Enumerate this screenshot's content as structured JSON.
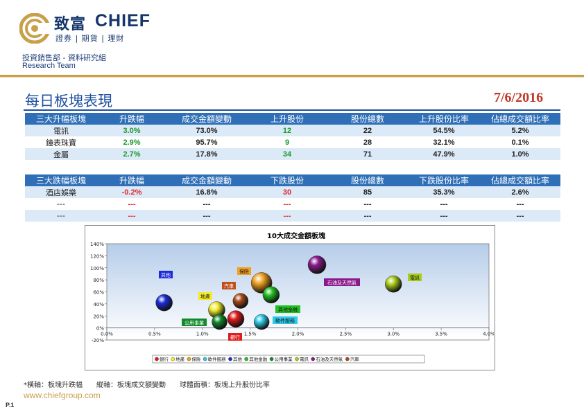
{
  "header": {
    "brand_cn": "致富",
    "brand_en": "CHIEF",
    "brand_tagline": "證券 | 期貨 | 理財",
    "department": "投資銷售部 - 資料研究組",
    "team": "Research Team"
  },
  "title": "每日板塊表現",
  "date": "7/6/2016",
  "gainers": {
    "headers": [
      "三大升幅板塊",
      "升跌幅",
      "成交金額變動",
      "上升股份",
      "股份總數",
      "上升股份比率",
      "佔總成交額比率"
    ],
    "rows": [
      [
        "電訊",
        "3.0%",
        "73.0%",
        "12",
        "22",
        "54.5%",
        "5.2%"
      ],
      [
        "鐘表珠寶",
        "2.9%",
        "95.7%",
        "9",
        "28",
        "32.1%",
        "0.1%"
      ],
      [
        "金屬",
        "2.7%",
        "17.8%",
        "34",
        "71",
        "47.9%",
        "1.0%"
      ]
    ]
  },
  "losers": {
    "headers": [
      "三大跌幅板塊",
      "升跌幅",
      "成交金額變動",
      "下跌股份",
      "股份總數",
      "下跌股份比率",
      "佔總成交額比率"
    ],
    "rows": [
      [
        "酒店娛樂",
        "-0.2%",
        "16.8%",
        "30",
        "85",
        "35.3%",
        "2.6%"
      ],
      [
        "---",
        "---",
        "---",
        "---",
        "---",
        "---",
        "---"
      ],
      [
        "---",
        "---",
        "---",
        "---",
        "---",
        "---",
        "---"
      ]
    ]
  },
  "chart_data": {
    "type": "scatter",
    "title": "10大成交金額板塊",
    "xlim": [
      0,
      4
    ],
    "ylim": [
      -20,
      140
    ],
    "x_ticks": [
      "0.0%",
      "0.5%",
      "1.0%",
      "1.5%",
      "2.0%",
      "2.5%",
      "3.0%",
      "3.5%",
      "4.0%"
    ],
    "y_ticks": [
      "140%",
      "120%",
      "100%",
      "80%",
      "60%",
      "40%",
      "20%",
      "0%",
      "-20%"
    ],
    "legend_position": "bottom",
    "series": [
      {
        "name": "銀行",
        "x": 1.35,
        "y": 15,
        "r": 12,
        "color": "#e01b1b"
      },
      {
        "name": "地產",
        "x": 1.15,
        "y": 30,
        "r": 12,
        "color": "#f2ea2a"
      },
      {
        "name": "保險",
        "x": 1.62,
        "y": 75,
        "r": 15,
        "color": "#f0a020"
      },
      {
        "name": "軟件服務",
        "x": 1.62,
        "y": 10,
        "r": 11,
        "color": "#2ec9e8"
      },
      {
        "name": "其他",
        "x": 0.6,
        "y": 42,
        "r": 12,
        "color": "#1a2bd8"
      },
      {
        "name": "其他金融",
        "x": 1.72,
        "y": 55,
        "r": 12,
        "color": "#22c022"
      },
      {
        "name": "公用事業",
        "x": 1.18,
        "y": 10,
        "r": 11,
        "color": "#118a2a"
      },
      {
        "name": "電訊",
        "x": 3.0,
        "y": 73,
        "r": 12,
        "color": "#a8cc1a"
      },
      {
        "name": "石油及天然氣",
        "x": 2.2,
        "y": 105,
        "r": 13,
        "color": "#8a1a8c"
      },
      {
        "name": "汽車",
        "x": 1.4,
        "y": 45,
        "r": 11,
        "color": "#a84a1a"
      }
    ],
    "labels": [
      {
        "text": "其他",
        "color": "#1a2bd8"
      },
      {
        "text": "保險",
        "color": "#f0a020"
      },
      {
        "text": "石油及天然氣",
        "color": "#8a1a8c"
      },
      {
        "text": "電訊",
        "color": "#a8cc1a"
      },
      {
        "text": "汽車",
        "color": "#c0501a"
      },
      {
        "text": "地產",
        "color": "#f2ea2a"
      },
      {
        "text": "其他金融",
        "color": "#22c022"
      },
      {
        "text": "公用事業",
        "color": "#118a2a"
      },
      {
        "text": "軟件服務",
        "color": "#2ec9e8"
      },
      {
        "text": "銀行",
        "color": "#e01b1b"
      }
    ]
  },
  "footer": {
    "footnote": "*橫軸：板塊升跌幅　　縱軸：板塊成交額變動　　球體面積：板塊上升股份比率",
    "url": "www.chiefgroup.com",
    "page": "P.1"
  }
}
